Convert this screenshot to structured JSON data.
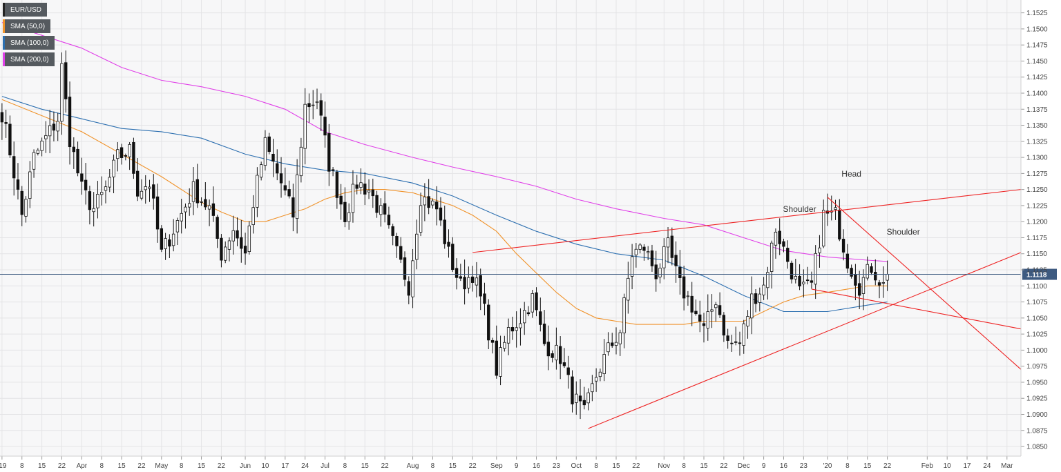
{
  "chart_data": {
    "type": "candlestick",
    "symbol": "EUR/USD",
    "ylim": [
      1.0835,
      1.1545
    ],
    "y_ticks": [
      "1.1525",
      "1.1500",
      "1.1475",
      "1.1450",
      "1.1425",
      "1.1400",
      "1.1375",
      "1.1350",
      "1.1325",
      "1.1300",
      "1.1275",
      "1.1250",
      "1.1225",
      "1.1200",
      "1.1175",
      "1.1150",
      "1.1125",
      "1.1100",
      "1.1075",
      "1.1050",
      "1.1025",
      "1.1000",
      "1.0975",
      "1.0950",
      "1.0925",
      "1.0900",
      "1.0875",
      "1.0850"
    ],
    "x_ticks": [
      {
        "label": "'19",
        "bar": 0
      },
      {
        "label": "8",
        "bar": 5
      },
      {
        "label": "15",
        "bar": 10
      },
      {
        "label": "22",
        "bar": 15
      },
      {
        "label": "Apr",
        "bar": 20
      },
      {
        "label": "8",
        "bar": 25
      },
      {
        "label": "15",
        "bar": 30
      },
      {
        "label": "22",
        "bar": 35
      },
      {
        "label": "May",
        "bar": 40
      },
      {
        "label": "8",
        "bar": 45
      },
      {
        "label": "15",
        "bar": 50
      },
      {
        "label": "22",
        "bar": 55
      },
      {
        "label": "Jun",
        "bar": 61
      },
      {
        "label": "10",
        "bar": 66
      },
      {
        "label": "17",
        "bar": 71
      },
      {
        "label": "24",
        "bar": 76
      },
      {
        "label": "Jul",
        "bar": 81
      },
      {
        "label": "8",
        "bar": 86
      },
      {
        "label": "15",
        "bar": 91
      },
      {
        "label": "22",
        "bar": 96
      },
      {
        "label": "Aug",
        "bar": 103
      },
      {
        "label": "8",
        "bar": 108
      },
      {
        "label": "15",
        "bar": 113
      },
      {
        "label": "22",
        "bar": 118
      },
      {
        "label": "Sep",
        "bar": 124
      },
      {
        "label": "9",
        "bar": 129
      },
      {
        "label": "16",
        "bar": 134
      },
      {
        "label": "23",
        "bar": 139
      },
      {
        "label": "Oct",
        "bar": 144
      },
      {
        "label": "8",
        "bar": 149
      },
      {
        "label": "15",
        "bar": 154
      },
      {
        "label": "22",
        "bar": 159
      },
      {
        "label": "Nov",
        "bar": 166
      },
      {
        "label": "8",
        "bar": 171
      },
      {
        "label": "15",
        "bar": 176
      },
      {
        "label": "22",
        "bar": 181
      },
      {
        "label": "Dec",
        "bar": 186
      },
      {
        "label": "9",
        "bar": 191
      },
      {
        "label": "16",
        "bar": 196
      },
      {
        "label": "23",
        "bar": 201
      },
      {
        "label": "'20",
        "bar": 207
      },
      {
        "label": "8",
        "bar": 212
      },
      {
        "label": "15",
        "bar": 217
      },
      {
        "label": "22",
        "bar": 222
      },
      {
        "label": "Feb",
        "bar": 232
      },
      {
        "label": "10",
        "bar": 237
      },
      {
        "label": "17",
        "bar": 242
      },
      {
        "label": "24",
        "bar": 247
      },
      {
        "label": "Mar",
        "bar": 252
      }
    ],
    "x_range_bars": [
      -0.5,
      255.5
    ],
    "series": [
      {
        "name": "SMA (50,0)",
        "color": "#f0932b"
      },
      {
        "name": "SMA (100,0)",
        "color": "#2c6fb0"
      },
      {
        "name": "SMA (200,0)",
        "color": "#e040e8"
      }
    ],
    "sma50_points": [
      [
        0,
        1.139
      ],
      [
        10,
        1.1365
      ],
      [
        20,
        1.134
      ],
      [
        30,
        1.1305
      ],
      [
        40,
        1.127
      ],
      [
        50,
        1.123
      ],
      [
        55,
        1.1215
      ],
      [
        61,
        1.12
      ],
      [
        66,
        1.12
      ],
      [
        71,
        1.121
      ],
      [
        76,
        1.122
      ],
      [
        81,
        1.1235
      ],
      [
        86,
        1.1245
      ],
      [
        91,
        1.125
      ],
      [
        96,
        1.125
      ],
      [
        103,
        1.1245
      ],
      [
        108,
        1.1235
      ],
      [
        113,
        1.1225
      ],
      [
        118,
        1.121
      ],
      [
        124,
        1.1185
      ],
      [
        129,
        1.115
      ],
      [
        134,
        1.112
      ],
      [
        139,
        1.109
      ],
      [
        144,
        1.1065
      ],
      [
        149,
        1.105
      ],
      [
        154,
        1.1045
      ],
      [
        159,
        1.104
      ],
      [
        166,
        1.104
      ],
      [
        171,
        1.104
      ],
      [
        176,
        1.1045
      ],
      [
        181,
        1.1045
      ],
      [
        186,
        1.1045
      ],
      [
        191,
        1.106
      ],
      [
        196,
        1.1075
      ],
      [
        201,
        1.1085
      ],
      [
        207,
        1.109
      ],
      [
        212,
        1.1095
      ],
      [
        217,
        1.11
      ],
      [
        222,
        1.11
      ]
    ],
    "sma100_points": [
      [
        0,
        1.1395
      ],
      [
        10,
        1.1375
      ],
      [
        20,
        1.136
      ],
      [
        30,
        1.1345
      ],
      [
        40,
        1.134
      ],
      [
        50,
        1.133
      ],
      [
        61,
        1.1305
      ],
      [
        71,
        1.129
      ],
      [
        81,
        1.128
      ],
      [
        91,
        1.1275
      ],
      [
        103,
        1.126
      ],
      [
        113,
        1.124
      ],
      [
        124,
        1.121
      ],
      [
        134,
        1.1185
      ],
      [
        144,
        1.1165
      ],
      [
        154,
        1.115
      ],
      [
        166,
        1.114
      ],
      [
        176,
        1.1115
      ],
      [
        186,
        1.1085
      ],
      [
        196,
        1.106
      ],
      [
        207,
        1.106
      ],
      [
        217,
        1.107
      ],
      [
        222,
        1.1075
      ]
    ],
    "sma200_points": [
      [
        0,
        1.151
      ],
      [
        10,
        1.149
      ],
      [
        20,
        1.147
      ],
      [
        30,
        1.144
      ],
      [
        40,
        1.142
      ],
      [
        50,
        1.141
      ],
      [
        61,
        1.1395
      ],
      [
        71,
        1.1375
      ],
      [
        81,
        1.134
      ],
      [
        91,
        1.132
      ],
      [
        103,
        1.13
      ],
      [
        113,
        1.1285
      ],
      [
        124,
        1.127
      ],
      [
        134,
        1.1255
      ],
      [
        144,
        1.1235
      ],
      [
        154,
        1.122
      ],
      [
        166,
        1.1205
      ],
      [
        176,
        1.1195
      ],
      [
        186,
        1.1175
      ],
      [
        196,
        1.1155
      ],
      [
        207,
        1.1145
      ],
      [
        217,
        1.114
      ],
      [
        222,
        1.1138
      ]
    ],
    "current_price": "1.1118",
    "annotations": [
      {
        "text": "Shoulder",
        "bar": 200,
        "y": 1.1215
      },
      {
        "text": "Head",
        "bar": 213,
        "y": 1.127
      },
      {
        "text": "Shoulder",
        "bar": 226,
        "y": 1.118
      }
    ],
    "trendlines": [
      {
        "from": [
          118,
          1.1152
        ],
        "to": [
          255.5,
          1.125
        ]
      },
      {
        "from": [
          147,
          1.0878
        ],
        "to": [
          255.5,
          1.1152
        ]
      },
      {
        "from": [
          207,
          1.1238
        ],
        "to": [
          255.5,
          1.097
        ]
      },
      {
        "from": [
          203,
          1.1095
        ],
        "to": [
          255.5,
          1.1033
        ]
      }
    ],
    "anchors": [
      [
        0,
        1.137
      ],
      [
        2,
        1.131
      ],
      [
        5,
        1.121
      ],
      [
        8,
        1.13
      ],
      [
        12,
        1.134
      ],
      [
        14,
        1.136
      ],
      [
        15,
        1.144
      ],
      [
        17,
        1.133
      ],
      [
        20,
        1.125
      ],
      [
        23,
        1.122
      ],
      [
        26,
        1.125
      ],
      [
        29,
        1.13
      ],
      [
        32,
        1.131
      ],
      [
        34,
        1.125
      ],
      [
        37,
        1.126
      ],
      [
        40,
        1.115
      ],
      [
        44,
        1.12
      ],
      [
        48,
        1.125
      ],
      [
        52,
        1.122
      ],
      [
        55,
        1.115
      ],
      [
        58,
        1.119
      ],
      [
        61,
        1.115
      ],
      [
        63,
        1.123
      ],
      [
        66,
        1.132
      ],
      [
        70,
        1.126
      ],
      [
        73,
        1.121
      ],
      [
        76,
        1.138
      ],
      [
        79,
        1.139
      ],
      [
        82,
        1.129
      ],
      [
        86,
        1.121
      ],
      [
        89,
        1.126
      ],
      [
        92,
        1.125
      ],
      [
        96,
        1.12
      ],
      [
        99,
        1.115
      ],
      [
        102,
        1.11
      ],
      [
        105,
        1.124
      ],
      [
        109,
        1.122
      ],
      [
        112,
        1.115
      ],
      [
        115,
        1.11
      ],
      [
        118,
        1.112
      ],
      [
        121,
        1.106
      ],
      [
        124,
        1.097
      ],
      [
        127,
        1.103
      ],
      [
        130,
        1.105
      ],
      [
        133,
        1.108
      ],
      [
        136,
        1.101
      ],
      [
        140,
        1.099
      ],
      [
        143,
        1.093
      ],
      [
        146,
        1.09
      ],
      [
        149,
        1.096
      ],
      [
        152,
        1.1
      ],
      [
        155,
        1.103
      ],
      [
        158,
        1.115
      ],
      [
        161,
        1.116
      ],
      [
        164,
        1.112
      ],
      [
        167,
        1.116
      ],
      [
        170,
        1.11
      ],
      [
        173,
        1.107
      ],
      [
        176,
        1.103
      ],
      [
        179,
        1.108
      ],
      [
        182,
        1.101
      ],
      [
        185,
        1.101
      ],
      [
        188,
        1.108
      ],
      [
        191,
        1.11
      ],
      [
        194,
        1.119
      ],
      [
        197,
        1.114
      ],
      [
        200,
        1.109
      ],
      [
        203,
        1.11
      ],
      [
        206,
        1.121
      ],
      [
        209,
        1.121
      ],
      [
        212,
        1.114
      ],
      [
        215,
        1.11
      ],
      [
        218,
        1.113
      ],
      [
        221,
        1.11
      ],
      [
        222,
        1.1118
      ]
    ]
  }
}
